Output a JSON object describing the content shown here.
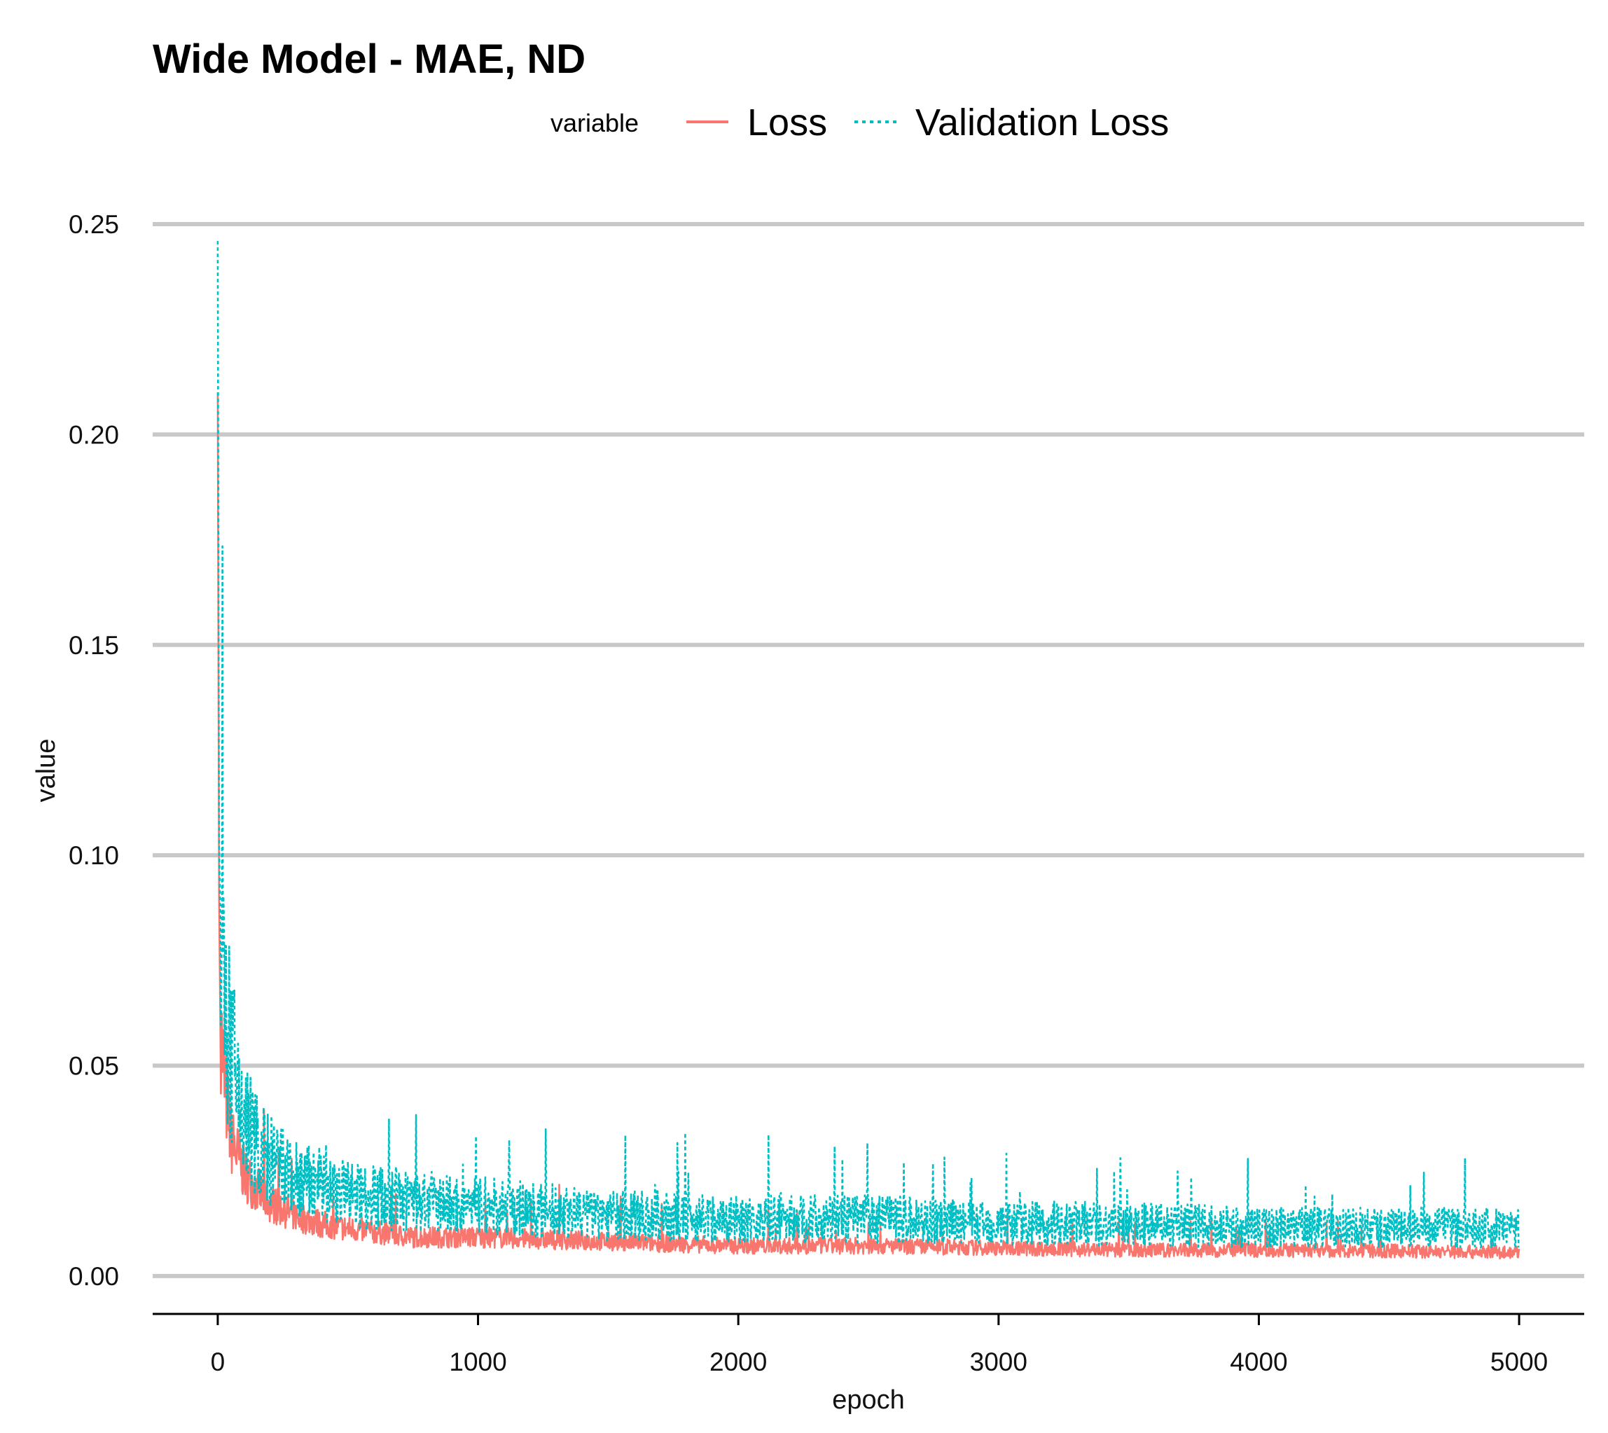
{
  "chart_data": {
    "type": "line",
    "title": "Wide Model - MAE, ND",
    "xlabel": "epoch",
    "ylabel": "value",
    "xlim": [
      -250,
      5250
    ],
    "ylim": [
      -0.009,
      0.255
    ],
    "x_ticks": [
      0,
      1000,
      2000,
      3000,
      4000,
      5000
    ],
    "x_tick_labels": [
      "0",
      "1000",
      "2000",
      "3000",
      "4000",
      "5000"
    ],
    "y_ticks": [
      0.0,
      0.05,
      0.1,
      0.15,
      0.2,
      0.25
    ],
    "y_tick_labels": [
      "0.00",
      "0.05",
      "0.10",
      "0.15",
      "0.20",
      "0.25"
    ],
    "grid": "horizontal major",
    "legend": {
      "title": "variable",
      "position": "top",
      "entries": [
        {
          "name": "Loss",
          "linetype": "solid"
        },
        {
          "name": "Validation Loss",
          "linetype": "dotted"
        }
      ]
    },
    "series": [
      {
        "name": "Loss",
        "color": "#F8766D",
        "linetype": "solid",
        "x": [
          0,
          5,
          10,
          25,
          50,
          100,
          150,
          200,
          300,
          400,
          500,
          750,
          1000,
          1500,
          2000,
          2500,
          3000,
          3500,
          4000,
          4500,
          5000
        ],
        "values": [
          0.21,
          0.09,
          0.06,
          0.045,
          0.032,
          0.024,
          0.02,
          0.017,
          0.014,
          0.012,
          0.011,
          0.009,
          0.009,
          0.008,
          0.007,
          0.007,
          0.0065,
          0.006,
          0.006,
          0.0058,
          0.0055
        ]
      },
      {
        "name": "Validation Loss",
        "color": "#00BFC4",
        "linetype": "dotted",
        "x": [
          0,
          5,
          10,
          25,
          50,
          100,
          150,
          200,
          300,
          400,
          500,
          750,
          1000,
          1500,
          2000,
          2500,
          3000,
          3500,
          4000,
          4500,
          5000
        ],
        "values": [
          0.246,
          0.102,
          0.085,
          0.065,
          0.05,
          0.036,
          0.03,
          0.026,
          0.022,
          0.02,
          0.019,
          0.017,
          0.016,
          0.014,
          0.013,
          0.013,
          0.012,
          0.012,
          0.011,
          0.011,
          0.011
        ]
      }
    ]
  }
}
